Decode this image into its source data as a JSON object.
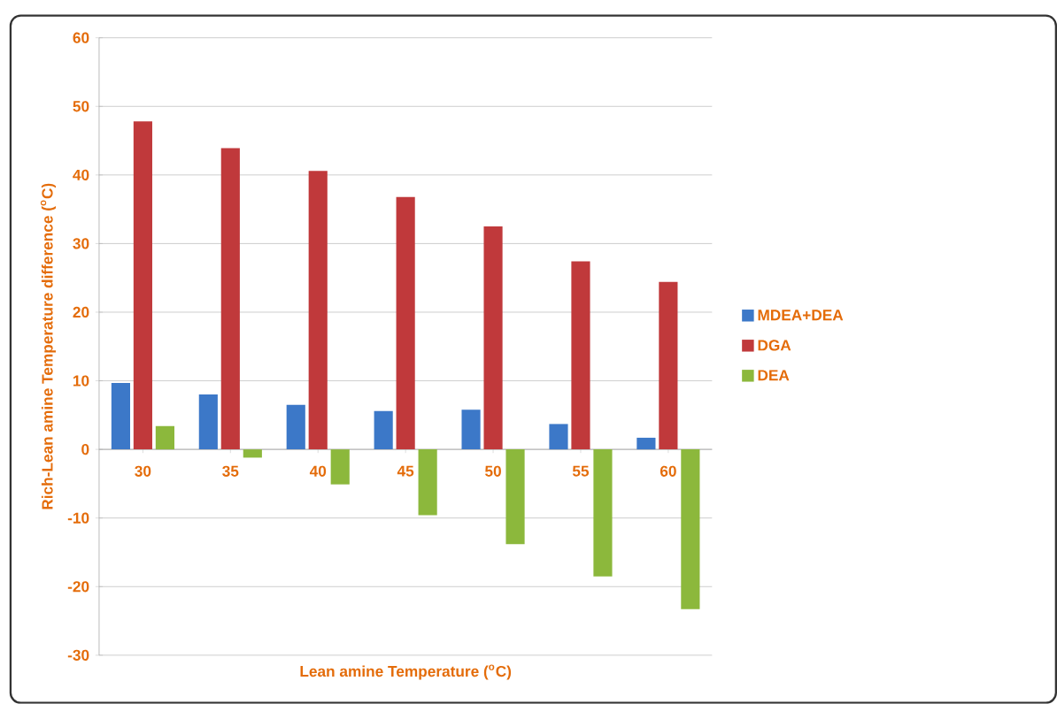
{
  "chart_data": {
    "type": "bar",
    "xlabel": "Lean amine Temperature ($^{o}$C)",
    "ylabel": "Rich-Lean amine Temperature difference ($^{o}$C)",
    "categories": [
      "30",
      "35",
      "40",
      "45",
      "50",
      "55",
      "60"
    ],
    "series": [
      {
        "name": "MDEA+DEA",
        "color": "#3c78c8",
        "values": [
          9.7,
          8.0,
          6.5,
          5.6,
          5.8,
          3.7,
          1.7
        ]
      },
      {
        "name": "DGA",
        "color": "#c0393b",
        "values": [
          47.8,
          43.9,
          40.6,
          36.8,
          32.5,
          27.4,
          24.4
        ]
      },
      {
        "name": "DEA",
        "color": "#8cb83c",
        "values": [
          3.4,
          -1.2,
          -5.1,
          -9.6,
          -13.8,
          -18.5,
          -23.3
        ]
      }
    ],
    "ylim": [
      -30,
      60
    ],
    "yticks": [
      -30,
      -20,
      -10,
      0,
      10,
      20,
      30,
      40,
      50,
      60
    ],
    "grid": "y",
    "legend": "right"
  }
}
